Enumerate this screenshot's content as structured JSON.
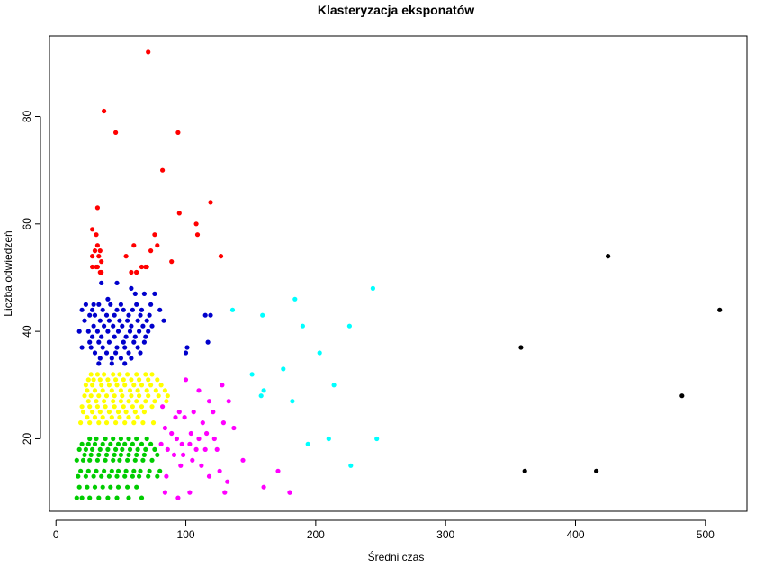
{
  "chart_data": {
    "type": "scatter",
    "title": "Klasteryzacja eksponatów",
    "xlabel": "Średni czas",
    "ylabel": "Liczba odwiedzeń",
    "xlim": [
      -5,
      532
    ],
    "ylim": [
      6.5,
      95
    ],
    "x_ticks": [
      0,
      100,
      200,
      300,
      400,
      500
    ],
    "y_ticks": [
      20,
      40,
      60,
      80
    ],
    "grid": false,
    "legend": "none",
    "series": [
      {
        "color": "#ff0000",
        "x": [
          71,
          37,
          46,
          94,
          82,
          119,
          95,
          108,
          109,
          32,
          76,
          73,
          60,
          28,
          31,
          32,
          78,
          34,
          30,
          28,
          33,
          35,
          54,
          127,
          89,
          66,
          69,
          62,
          70,
          32,
          31,
          28,
          35,
          34,
          58,
          62
        ],
        "y": [
          92,
          81,
          77,
          77,
          70,
          64,
          62,
          60,
          58,
          63,
          58,
          55,
          56,
          59,
          58,
          56,
          56,
          55,
          55,
          54,
          54,
          53,
          54,
          54,
          53,
          52,
          52,
          51,
          52,
          52,
          52,
          52,
          51,
          51,
          51,
          51
        ]
      },
      {
        "color": "#0000cc",
        "x": [
          35,
          47,
          58,
          61,
          68,
          76,
          40,
          23,
          29,
          33,
          42,
          50,
          62,
          73,
          20,
          28,
          36,
          47,
          52,
          59,
          66,
          80,
          26,
          30,
          39,
          45,
          56,
          65,
          72,
          115,
          119,
          22,
          34,
          41,
          49,
          55,
          63,
          70,
          83,
          29,
          37,
          44,
          51,
          58,
          67,
          74,
          18,
          25,
          32,
          40,
          48,
          57,
          64,
          71,
          117,
          28,
          35,
          45,
          54,
          61,
          69,
          101,
          26,
          33,
          41,
          52,
          60,
          68,
          100,
          20,
          27,
          36,
          47,
          53,
          63,
          30,
          39,
          46,
          56,
          65,
          34,
          43,
          50,
          58,
          33,
          43,
          53
        ],
        "y": [
          49,
          49,
          48,
          47,
          47,
          47,
          46,
          45,
          45,
          45,
          45,
          45,
          45,
          45,
          44,
          44,
          44,
          44,
          44,
          44,
          44,
          44,
          43,
          43,
          43,
          43,
          43,
          43,
          43,
          43,
          43,
          42,
          42,
          42,
          42,
          42,
          42,
          42,
          42,
          41,
          41,
          41,
          41,
          41,
          41,
          41,
          40,
          40,
          40,
          40,
          40,
          40,
          40,
          40,
          38,
          39,
          39,
          39,
          39,
          39,
          39,
          37,
          38,
          38,
          38,
          38,
          38,
          38,
          36,
          37,
          37,
          37,
          37,
          37,
          37,
          36,
          36,
          36,
          36,
          36,
          35,
          35,
          35,
          35,
          34,
          34,
          34
        ]
      },
      {
        "color": "#ffff00",
        "x": [
          27,
          32,
          37,
          44,
          49,
          55,
          62,
          69,
          74,
          25,
          29,
          34,
          40,
          46,
          52,
          58,
          64,
          71,
          78,
          23,
          28,
          35,
          41,
          47,
          53,
          60,
          66,
          73,
          81,
          86,
          24,
          30,
          36,
          43,
          50,
          57,
          63,
          70,
          77,
          84,
          22,
          27,
          33,
          39,
          45,
          51,
          58,
          64,
          71,
          79,
          25,
          31,
          37,
          44,
          50,
          56,
          62,
          69,
          76,
          85,
          20,
          26,
          32,
          38,
          45,
          52,
          59,
          66,
          74,
          21,
          28,
          34,
          41,
          48,
          54,
          61,
          68,
          24,
          30,
          36,
          43,
          49,
          56,
          63,
          19,
          26,
          33,
          39,
          46,
          53,
          60,
          67,
          75
        ],
        "y": [
          32,
          32,
          32,
          32,
          32,
          32,
          32,
          32,
          32,
          31,
          31,
          31,
          31,
          31,
          31,
          31,
          31,
          31,
          31,
          30,
          30,
          30,
          30,
          30,
          30,
          30,
          30,
          30,
          30,
          28,
          29,
          29,
          29,
          29,
          29,
          29,
          29,
          29,
          29,
          29,
          28,
          28,
          28,
          28,
          28,
          28,
          28,
          28,
          28,
          28,
          27,
          27,
          27,
          27,
          27,
          27,
          27,
          27,
          27,
          27,
          26,
          26,
          26,
          26,
          26,
          26,
          26,
          26,
          26,
          25,
          25,
          25,
          25,
          25,
          25,
          25,
          25,
          24,
          24,
          24,
          24,
          24,
          24,
          24,
          23,
          23,
          23,
          23,
          23,
          23,
          23,
          23,
          23
        ]
      },
      {
        "color": "#00cc00",
        "x": [
          26,
          31,
          38,
          44,
          50,
          56,
          62,
          70,
          20,
          25,
          30,
          36,
          42,
          48,
          53,
          59,
          66,
          73,
          18,
          23,
          28,
          34,
          40,
          46,
          51,
          57,
          63,
          69,
          76,
          22,
          27,
          33,
          39,
          45,
          50,
          56,
          62,
          68,
          78,
          16,
          21,
          26,
          32,
          38,
          44,
          49,
          55,
          61,
          67,
          74,
          19,
          25,
          31,
          37,
          43,
          48,
          54,
          60,
          65,
          72,
          80,
          17,
          23,
          29,
          35,
          41,
          47,
          53,
          59,
          64,
          71,
          78,
          18,
          24,
          30,
          36,
          42,
          48,
          55,
          62,
          16,
          20,
          26,
          33,
          40,
          47,
          56,
          66
        ],
        "y": [
          20,
          20,
          20,
          20,
          20,
          20,
          20,
          20,
          19,
          19,
          19,
          19,
          19,
          19,
          19,
          19,
          19,
          19,
          18,
          18,
          18,
          18,
          18,
          18,
          18,
          18,
          18,
          18,
          18,
          17,
          17,
          17,
          17,
          17,
          17,
          17,
          17,
          17,
          17,
          16,
          16,
          16,
          16,
          16,
          16,
          16,
          16,
          16,
          16,
          16,
          14,
          14,
          14,
          14,
          14,
          14,
          14,
          14,
          14,
          14,
          14,
          13,
          13,
          13,
          13,
          13,
          13,
          13,
          13,
          13,
          13,
          13,
          11,
          11,
          11,
          11,
          11,
          11,
          11,
          11,
          9,
          9,
          9,
          9,
          9,
          9,
          9,
          9
        ]
      },
      {
        "color": "#ff00ff",
        "x": [
          100,
          128,
          110,
          118,
          133,
          82,
          95,
          106,
          121,
          92,
          99,
          113,
          129,
          84,
          137,
          89,
          104,
          116,
          93,
          110,
          122,
          81,
          97,
          103,
          144,
          115,
          86,
          108,
          124,
          91,
          98,
          105,
          132,
          112,
          96,
          126,
          171,
          85,
          118,
          160,
          84,
          103,
          130,
          180,
          94,
          180
        ],
        "y": [
          31,
          30,
          29,
          27,
          27,
          26,
          25,
          25,
          25,
          24,
          24,
          23,
          23,
          22,
          22,
          21,
          21,
          21,
          20,
          20,
          20,
          19,
          19,
          19,
          16,
          18,
          18,
          18,
          18,
          17,
          17,
          16,
          12,
          15,
          15,
          14,
          14,
          13,
          13,
          11,
          10,
          10,
          10,
          10,
          9,
          10
        ]
      },
      {
        "color": "#00ffff",
        "x": [
          244,
          184,
          136,
          159,
          190,
          226,
          203,
          175,
          151,
          214,
          160,
          158,
          182,
          247,
          210,
          194,
          227
        ],
        "y": [
          48,
          46,
          44,
          43,
          41,
          41,
          36,
          33,
          32,
          30,
          29,
          28,
          27,
          20,
          20,
          19,
          15
        ]
      },
      {
        "color": "#000000",
        "x": [
          425,
          511,
          358,
          482,
          361,
          416
        ],
        "y": [
          54,
          44,
          37,
          28,
          14,
          14
        ]
      }
    ]
  }
}
